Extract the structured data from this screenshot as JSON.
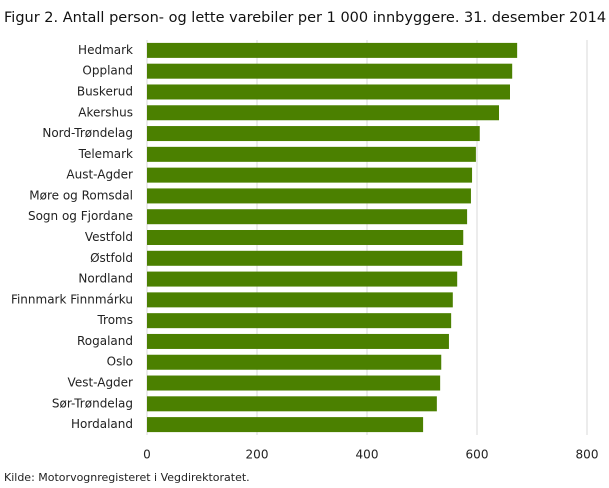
{
  "chart_data": {
    "type": "barh",
    "title": "Figur 2. Antall person- og lette varebiler per 1 000 innbyggere. 31. desember 2014",
    "source": "Kilde: Motorvognregisteret i Vegdirektoratet.",
    "categories": [
      "Hedmark",
      "Oppland",
      "Buskerud",
      "Akershus",
      "Nord-Trøndelag",
      "Telemark",
      "Aust-Agder",
      "Møre og Romsdal",
      "Sogn og Fjordane",
      "Vestfold",
      "Østfold",
      "Nordland",
      "Finnmark Finnmárku",
      "Troms",
      "Rogaland",
      "Oslo",
      "Vest-Agder",
      "Sør-Trøndelag",
      "Hordaland"
    ],
    "values": [
      673,
      664,
      660,
      640,
      605,
      598,
      591,
      589,
      582,
      575,
      573,
      564,
      556,
      553,
      549,
      535,
      533,
      527,
      502
    ],
    "color": "#4b8000",
    "xlim": [
      0,
      800
    ],
    "xticks": [
      0,
      200,
      400,
      600,
      800
    ],
    "grid": true
  }
}
